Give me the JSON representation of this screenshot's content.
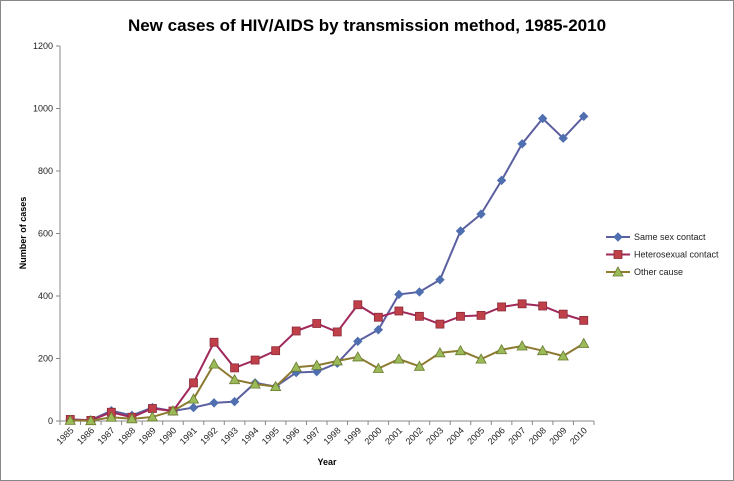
{
  "chart_data": {
    "type": "line",
    "title": "New cases of HIV/AIDS by transmission method, 1985-2010",
    "xlabel": "Year",
    "ylabel": "Number of cases",
    "ylim": [
      0,
      1200
    ],
    "yticks": [
      0,
      200,
      400,
      600,
      800,
      1000,
      1200
    ],
    "grid": false,
    "legend": "right",
    "categories": [
      "1985",
      "1986",
      "1987",
      "1988",
      "1989",
      "1990",
      "1991",
      "1992",
      "1993",
      "1994",
      "1995",
      "1996",
      "1997",
      "1998",
      "1999",
      "2000",
      "2001",
      "2002",
      "2003",
      "2004",
      "2005",
      "2006",
      "2007",
      "2008",
      "2009",
      "2010"
    ],
    "series": [
      {
        "name": "Same sex contact",
        "color": "#4F6FB0",
        "line_color": "#5B5FA0",
        "marker": "diamond",
        "values": [
          5,
          3,
          33,
          18,
          43,
          32,
          43,
          58,
          62,
          122,
          110,
          155,
          158,
          185,
          255,
          292,
          405,
          413,
          452,
          608,
          662,
          770,
          887,
          968,
          905,
          975
        ]
      },
      {
        "name": "Heterosexual contact",
        "color": "#C0404A",
        "line_color": "#A0285A",
        "marker": "square",
        "values": [
          5,
          2,
          28,
          12,
          40,
          32,
          122,
          252,
          170,
          195,
          225,
          288,
          312,
          285,
          372,
          332,
          352,
          335,
          310,
          335,
          338,
          365,
          375,
          368,
          342,
          322
        ]
      },
      {
        "name": "Other cause",
        "color": "#9BBB59",
        "line_color": "#8C7A30",
        "marker": "triangle",
        "values": [
          2,
          1,
          12,
          7,
          13,
          32,
          70,
          182,
          132,
          118,
          110,
          172,
          178,
          192,
          205,
          168,
          198,
          175,
          218,
          225,
          198,
          228,
          240,
          225,
          208,
          248
        ]
      }
    ]
  }
}
